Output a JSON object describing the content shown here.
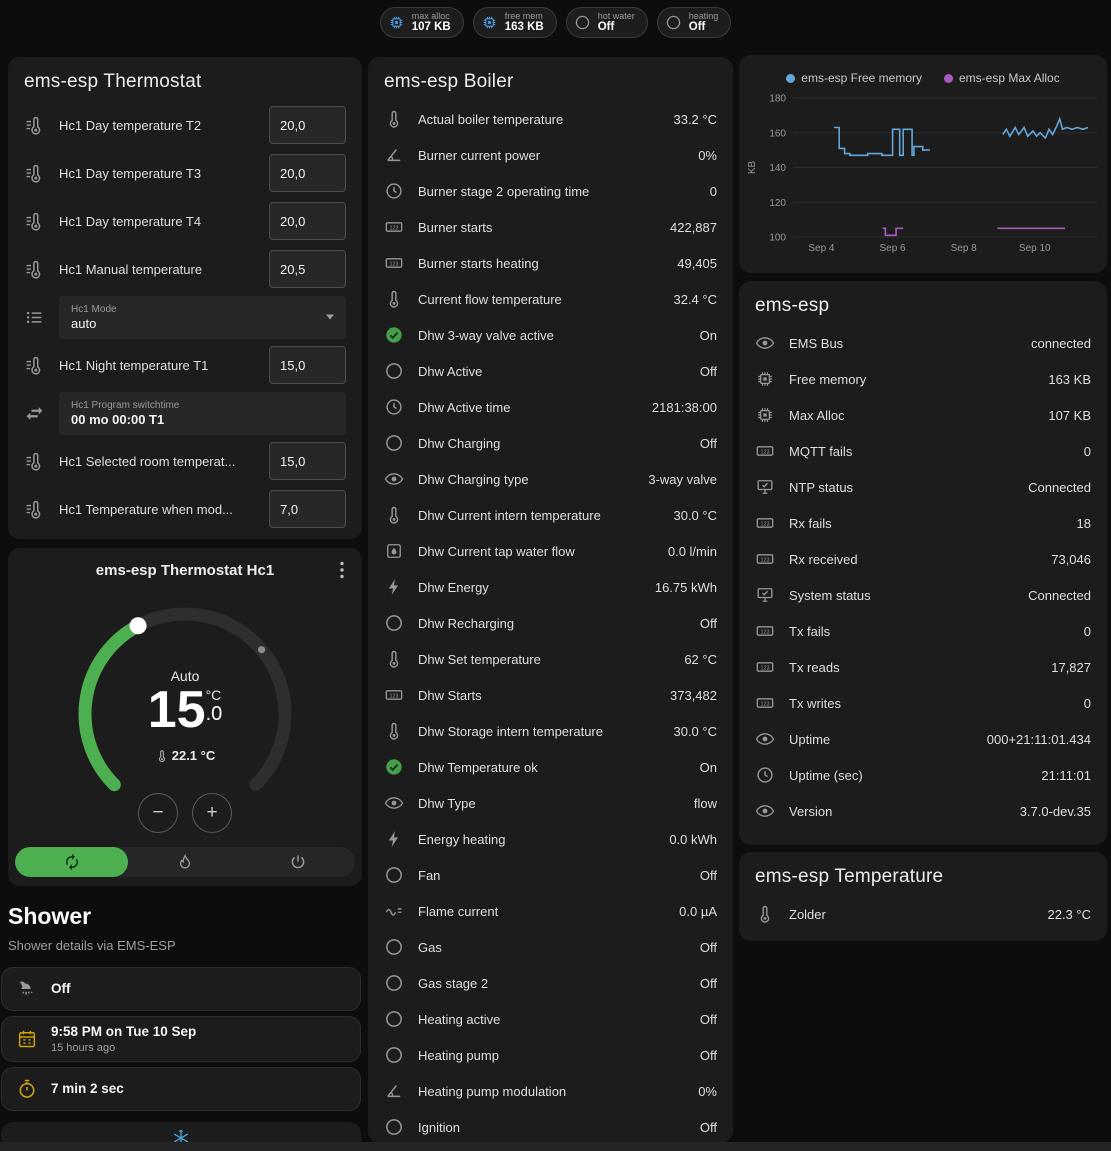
{
  "header_badges": [
    {
      "icon": "chip",
      "icon_color": "blue",
      "label": "max alloc",
      "value": "107 KB"
    },
    {
      "icon": "chip",
      "icon_color": "blue",
      "label": "free mem",
      "value": "163 KB"
    },
    {
      "icon": "circle-outline",
      "icon_color": "",
      "label": "hot water",
      "value": "Off"
    },
    {
      "icon": "circle-outline",
      "icon_color": "",
      "label": "heating",
      "value": "Off"
    }
  ],
  "thermostat_card": {
    "title": "ems-esp Thermostat",
    "rows": [
      {
        "control": "number",
        "icon": "thermo-lines",
        "label": "Hc1 Day temperature T2",
        "value": "20,0"
      },
      {
        "control": "number",
        "icon": "thermo-lines",
        "label": "Hc1 Day temperature T3",
        "value": "20,0"
      },
      {
        "control": "number",
        "icon": "thermo-lines",
        "label": "Hc1 Day temperature T4",
        "value": "20,0"
      },
      {
        "control": "number",
        "icon": "thermo-lines",
        "label": "Hc1 Manual temperature",
        "value": "20,5"
      },
      {
        "control": "select",
        "icon": "list",
        "label": "Hc1 Mode",
        "value": "auto"
      },
      {
        "control": "number",
        "icon": "thermo-lines",
        "label": "Hc1 Night temperature T1",
        "value": "15,0"
      },
      {
        "control": "text",
        "icon": "swap",
        "label": "Hc1 Program switchtime",
        "value": "00 mo 00:00 T1"
      },
      {
        "control": "number",
        "icon": "thermo-lines",
        "label": "Hc1 Selected room temperat...",
        "value": "15,0"
      },
      {
        "control": "number",
        "icon": "thermo-lines",
        "label": "Hc1 Temperature when mod...",
        "value": "7,0"
      }
    ]
  },
  "hc1_card": {
    "title": "ems-esp Thermostat Hc1",
    "mode_label": "Auto",
    "temp_whole": "15",
    "temp_frac": ".0",
    "unit": "°C",
    "current_temp": "22.1 °C",
    "stepper_minus": "−",
    "stepper_plus": "+",
    "modes": [
      {
        "name": "auto",
        "icon": "auto",
        "active": true
      },
      {
        "name": "heat",
        "icon": "fire",
        "active": false
      },
      {
        "name": "off",
        "icon": "power",
        "active": false
      }
    ]
  },
  "shower": {
    "title": "Shower",
    "subtitle": "Shower details via EMS-ESP",
    "cards": [
      {
        "icon": "shower",
        "icon_color": "",
        "primary": "Off",
        "secondary": ""
      },
      {
        "icon": "calendar",
        "icon_color": "amber",
        "primary": "9:58 PM on Tue 10 Sep",
        "secondary": "15 hours ago"
      },
      {
        "icon": "timer",
        "icon_color": "amber",
        "primary": "7 min 2 sec",
        "secondary": ""
      }
    ]
  },
  "snow_card": {
    "icon": "snowflake"
  },
  "boiler_card": {
    "title": "ems-esp Boiler",
    "rows": [
      {
        "icon": "thermometer",
        "label": "Actual boiler temperature",
        "value": "33.2 °C"
      },
      {
        "icon": "angle",
        "label": "Burner current power",
        "value": "0%"
      },
      {
        "icon": "clock",
        "label": "Burner stage 2 operating time",
        "value": "0"
      },
      {
        "icon": "counter",
        "label": "Burner starts",
        "value": "422,887"
      },
      {
        "icon": "counter",
        "label": "Burner starts heating",
        "value": "49,405"
      },
      {
        "icon": "thermometer",
        "label": "Current flow temperature",
        "value": "32.4 °C"
      },
      {
        "icon": "check-circle",
        "icon_color": "green",
        "label": "Dhw 3-way valve active",
        "value": "On"
      },
      {
        "icon": "circle-outline",
        "label": "Dhw Active",
        "value": "Off"
      },
      {
        "icon": "clock",
        "label": "Dhw Active time",
        "value": "2181:38:00"
      },
      {
        "icon": "circle-outline",
        "label": "Dhw Charging",
        "value": "Off"
      },
      {
        "icon": "eye",
        "label": "Dhw Charging type",
        "value": "3-way valve"
      },
      {
        "icon": "thermometer",
        "label": "Dhw Current intern temperature",
        "value": "30.0 °C"
      },
      {
        "icon": "pump",
        "label": "Dhw Current tap water flow",
        "value": "0.0 l/min"
      },
      {
        "icon": "bolt",
        "label": "Dhw Energy",
        "value": "16.75 kWh"
      },
      {
        "icon": "circle-outline",
        "label": "Dhw Recharging",
        "value": "Off"
      },
      {
        "icon": "thermometer",
        "label": "Dhw Set temperature",
        "value": "62 °C"
      },
      {
        "icon": "counter",
        "label": "Dhw Starts",
        "value": "373,482"
      },
      {
        "icon": "thermometer",
        "label": "Dhw Storage intern temperature",
        "value": "30.0 °C"
      },
      {
        "icon": "check-circle",
        "icon_color": "green",
        "label": "Dhw Temperature ok",
        "value": "On"
      },
      {
        "icon": "eye",
        "label": "Dhw Type",
        "value": "flow"
      },
      {
        "icon": "bolt",
        "label": "Energy heating",
        "value": "0.0 kWh"
      },
      {
        "icon": "circle-outline",
        "label": "Fan",
        "value": "Off"
      },
      {
        "icon": "current",
        "label": "Flame current",
        "value": "0.0 µA"
      },
      {
        "icon": "circle-outline",
        "label": "Gas",
        "value": "Off"
      },
      {
        "icon": "circle-outline",
        "label": "Gas stage 2",
        "value": "Off"
      },
      {
        "icon": "circle-outline",
        "label": "Heating active",
        "value": "Off"
      },
      {
        "icon": "circle-outline",
        "label": "Heating pump",
        "value": "Off"
      },
      {
        "icon": "angle",
        "label": "Heating pump modulation",
        "value": "0%"
      },
      {
        "icon": "circle-outline",
        "label": "Ignition",
        "value": "Off"
      }
    ]
  },
  "chart_card": {
    "legend": [
      {
        "label": "ems-esp Free memory",
        "color": "#64a6d8"
      },
      {
        "label": "ems-esp Max Alloc",
        "color": "#a85cc0"
      }
    ]
  },
  "chart_data": {
    "type": "line",
    "title": "",
    "xlabel": "",
    "ylabel": "KB",
    "ylim": [
      100,
      180
    ],
    "yticks": [
      100,
      120,
      140,
      160,
      180
    ],
    "xlim": [
      3.2,
      11.75
    ],
    "xticks": [
      {
        "day": 4,
        "label": "Sep 4"
      },
      {
        "day": 6,
        "label": "Sep 6"
      },
      {
        "day": 8,
        "label": "Sep 8"
      },
      {
        "day": 10,
        "label": "Sep 10"
      }
    ],
    "legend_position": "top",
    "grid": "horizontal",
    "series": [
      {
        "name": "ems-esp Free memory",
        "color": "#64a6d8",
        "points": [
          [
            4.35,
            163
          ],
          [
            4.5,
            163
          ],
          [
            4.5,
            151
          ],
          [
            4.65,
            151
          ],
          [
            4.65,
            148
          ],
          [
            4.8,
            148
          ],
          [
            4.8,
            147
          ],
          [
            5.3,
            147
          ],
          [
            5.3,
            148
          ],
          [
            5.7,
            148
          ],
          [
            5.7,
            147
          ],
          [
            6.0,
            147
          ],
          [
            6.0,
            162
          ],
          [
            6.2,
            162
          ],
          [
            6.2,
            147
          ],
          [
            6.3,
            147
          ],
          [
            6.3,
            162
          ],
          [
            6.55,
            162
          ],
          [
            6.55,
            147
          ],
          [
            6.6,
            147
          ],
          [
            6.6,
            152
          ],
          [
            6.85,
            152
          ],
          [
            6.85,
            150
          ],
          [
            7.05,
            150
          ],
          null,
          [
            9.1,
            159
          ],
          [
            9.2,
            162
          ],
          [
            9.3,
            158
          ],
          [
            9.45,
            163
          ],
          [
            9.55,
            159
          ],
          [
            9.7,
            163
          ],
          [
            9.8,
            158
          ],
          [
            9.95,
            161
          ],
          [
            10.05,
            158
          ],
          [
            10.15,
            160
          ],
          [
            10.3,
            157
          ],
          [
            10.4,
            162
          ],
          [
            10.5,
            159
          ],
          [
            10.6,
            163
          ],
          [
            10.7,
            168
          ],
          [
            10.78,
            162
          ],
          [
            10.9,
            163
          ],
          [
            11.05,
            162
          ],
          [
            11.2,
            163
          ],
          [
            11.35,
            162
          ],
          [
            11.5,
            163
          ]
        ]
      },
      {
        "name": "ems-esp Max Alloc",
        "color": "#a85cc0",
        "points": [
          [
            5.72,
            105
          ],
          [
            5.8,
            105
          ],
          [
            5.8,
            101
          ],
          [
            6.1,
            101
          ],
          [
            6.1,
            105
          ],
          [
            6.3,
            105
          ],
          null,
          [
            8.95,
            105
          ],
          [
            10.85,
            105
          ]
        ]
      }
    ]
  },
  "emsesp_card": {
    "title": "ems-esp",
    "rows": [
      {
        "icon": "eye",
        "label": "EMS Bus",
        "value": "connected"
      },
      {
        "icon": "chip",
        "label": "Free memory",
        "value": "163 KB"
      },
      {
        "icon": "chip",
        "label": "Max Alloc",
        "value": "107 KB"
      },
      {
        "icon": "counter",
        "label": "MQTT fails",
        "value": "0"
      },
      {
        "icon": "network",
        "label": "NTP status",
        "value": "Connected"
      },
      {
        "icon": "counter",
        "label": "Rx fails",
        "value": "18"
      },
      {
        "icon": "counter",
        "label": "Rx received",
        "value": "73,046"
      },
      {
        "icon": "network",
        "label": "System status",
        "value": "Connected"
      },
      {
        "icon": "counter",
        "label": "Tx fails",
        "value": "0"
      },
      {
        "icon": "counter",
        "label": "Tx reads",
        "value": "17,827"
      },
      {
        "icon": "counter",
        "label": "Tx writes",
        "value": "0"
      },
      {
        "icon": "eye",
        "label": "Uptime",
        "value": "000+21:11:01.434"
      },
      {
        "icon": "clock",
        "label": "Uptime (sec)",
        "value": "21:11:01"
      },
      {
        "icon": "eye",
        "label": "Version",
        "value": "3.7.0-dev.35"
      }
    ]
  },
  "temperature_card": {
    "title": "ems-esp Temperature",
    "rows": [
      {
        "icon": "thermometer",
        "label": "Zolder",
        "value": "22.3 °C"
      }
    ]
  }
}
